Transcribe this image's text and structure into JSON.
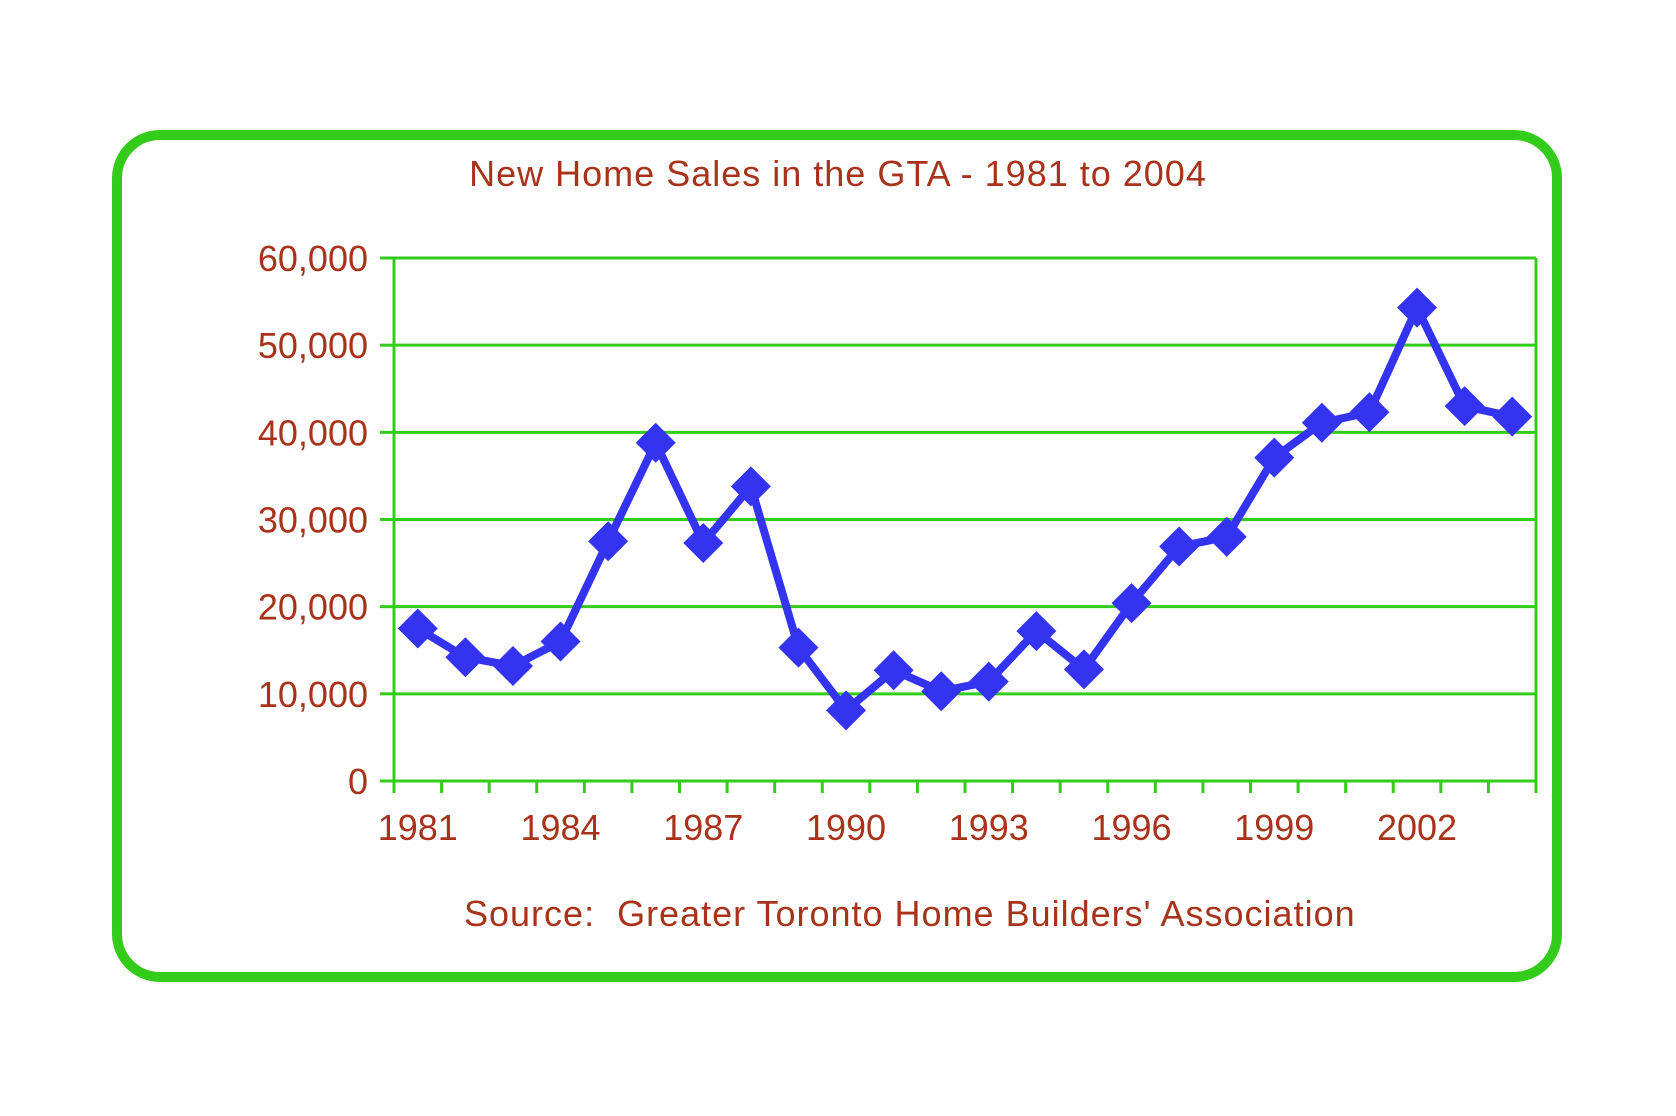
{
  "chart_data": {
    "type": "line",
    "title": "New Home Sales in the GTA - 1981 to 2004",
    "source": "Source:  Greater Toronto Home Builders' Association",
    "xlabel": "",
    "ylabel": "",
    "x": [
      1981,
      1982,
      1983,
      1984,
      1985,
      1986,
      1987,
      1988,
      1989,
      1990,
      1991,
      1992,
      1993,
      1994,
      1995,
      1996,
      1997,
      1998,
      1999,
      2000,
      2001,
      2002,
      2003,
      2004
    ],
    "series": [
      {
        "values": [
          17500,
          14200,
          13200,
          16000,
          27500,
          38800,
          27300,
          33800,
          15300,
          8100,
          12700,
          10300,
          11400,
          17200,
          12800,
          20400,
          26900,
          28000,
          37100,
          41100,
          42300,
          54300,
          43000,
          41800
        ]
      }
    ],
    "ylim": [
      0,
      60000
    ],
    "yticks": [
      0,
      10000,
      20000,
      30000,
      40000,
      50000,
      60000
    ],
    "ytick_labels": [
      "0",
      "10,000",
      "20,000",
      "30,000",
      "40,000",
      "50,000",
      "60,000"
    ],
    "xtick_labels": [
      "1981",
      "1984",
      "1987",
      "1990",
      "1993",
      "1996",
      "1999",
      "2002"
    ],
    "grid": true,
    "legend": "none",
    "colors": {
      "line": "#3333f0",
      "grid": "#33cc1a",
      "frame": "#33cc1a",
      "text": "#a8321a"
    }
  }
}
